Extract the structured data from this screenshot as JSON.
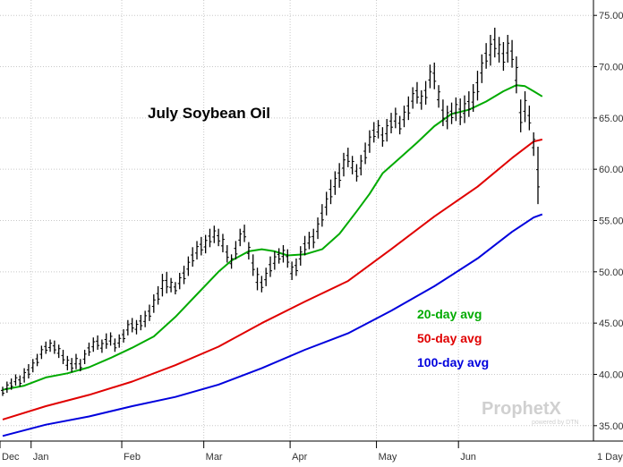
{
  "chart_data": {
    "type": "line",
    "title": "July Soybean Oil",
    "x_labels": [
      "Dec",
      "Jan",
      "Feb",
      "Mar",
      "Apr",
      "May",
      "Jun"
    ],
    "period_label": "1 Day",
    "ylim": [
      33.5,
      76.5
    ],
    "y_ticks": [
      "35.00",
      "40.00",
      "45.00",
      "50.00",
      "55.00",
      "60.00",
      "65.00",
      "70.00",
      "75.00"
    ],
    "grid": true,
    "watermark": "ProphetX",
    "watermark_sub": "powered by DTN",
    "colors": {
      "price": "#000000",
      "ma20": "#00aa00",
      "ma50": "#e00000",
      "ma100": "#0000dd"
    },
    "legend": [
      {
        "label": "20-day avg",
        "color": "#00aa00"
      },
      {
        "label": "50-day avg",
        "color": "#e00000"
      },
      {
        "label": "100-day avg",
        "color": "#0000dd"
      }
    ],
    "price_bars": [
      [
        37.9,
        38.8
      ],
      [
        38.2,
        39.3
      ],
      [
        38.5,
        39.6
      ],
      [
        38.9,
        40.0
      ],
      [
        38.8,
        39.9
      ],
      [
        39.2,
        40.6
      ],
      [
        39.6,
        41.0
      ],
      [
        40.2,
        41.5
      ],
      [
        40.8,
        42.0
      ],
      [
        41.5,
        42.8
      ],
      [
        42.0,
        43.2
      ],
      [
        42.2,
        43.4
      ],
      [
        42.0,
        43.3
      ],
      [
        41.6,
        42.9
      ],
      [
        41.0,
        42.4
      ],
      [
        40.4,
        41.8
      ],
      [
        40.2,
        41.6
      ],
      [
        40.5,
        42.0
      ],
      [
        40.3,
        41.5
      ],
      [
        41.0,
        42.4
      ],
      [
        41.8,
        43.1
      ],
      [
        42.2,
        43.6
      ],
      [
        42.4,
        43.8
      ],
      [
        42.1,
        43.4
      ],
      [
        42.5,
        44.0
      ],
      [
        42.8,
        44.1
      ],
      [
        42.2,
        43.5
      ],
      [
        42.6,
        43.9
      ],
      [
        43.1,
        44.4
      ],
      [
        43.8,
        45.3
      ],
      [
        44.1,
        45.5
      ],
      [
        43.9,
        45.3
      ],
      [
        44.3,
        45.8
      ],
      [
        44.6,
        46.2
      ],
      [
        45.2,
        46.8
      ],
      [
        46.0,
        47.8
      ],
      [
        46.8,
        48.6
      ],
      [
        47.6,
        49.8
      ],
      [
        47.9,
        50.0
      ],
      [
        48.0,
        49.4
      ],
      [
        47.8,
        49.0
      ],
      [
        48.3,
        49.9
      ],
      [
        48.8,
        50.6
      ],
      [
        49.6,
        51.5
      ],
      [
        50.5,
        52.4
      ],
      [
        51.2,
        53.0
      ],
      [
        51.6,
        53.4
      ],
      [
        51.8,
        53.6
      ],
      [
        52.4,
        54.2
      ],
      [
        52.8,
        54.5
      ],
      [
        52.5,
        54.2
      ],
      [
        51.9,
        53.7
      ],
      [
        50.9,
        52.6
      ],
      [
        50.3,
        51.7
      ],
      [
        51.2,
        53.0
      ],
      [
        52.5,
        54.2
      ],
      [
        52.9,
        54.6
      ],
      [
        51.2,
        52.9
      ],
      [
        49.6,
        51.7
      ],
      [
        48.2,
        50.4
      ],
      [
        48.0,
        49.6
      ],
      [
        48.6,
        50.4
      ],
      [
        49.5,
        51.5
      ],
      [
        50.2,
        52.0
      ],
      [
        50.8,
        52.3
      ],
      [
        50.9,
        52.6
      ],
      [
        50.4,
        52.2
      ],
      [
        49.2,
        51.0
      ],
      [
        49.6,
        51.3
      ],
      [
        50.6,
        52.5
      ],
      [
        51.6,
        53.5
      ],
      [
        52.2,
        53.9
      ],
      [
        52.3,
        54.2
      ],
      [
        53.2,
        55.3
      ],
      [
        54.4,
        56.6
      ],
      [
        55.5,
        57.8
      ],
      [
        56.6,
        59.0
      ],
      [
        57.5,
        59.8
      ],
      [
        58.2,
        60.6
      ],
      [
        59.3,
        61.6
      ],
      [
        60.2,
        62.1
      ],
      [
        59.5,
        61.3
      ],
      [
        58.8,
        60.5
      ],
      [
        59.4,
        61.4
      ],
      [
        60.5,
        62.6
      ],
      [
        61.6,
        63.8
      ],
      [
        62.6,
        64.6
      ],
      [
        63.0,
        64.8
      ],
      [
        62.2,
        64.1
      ],
      [
        62.7,
        64.9
      ],
      [
        63.5,
        65.5
      ],
      [
        64.0,
        66.0
      ],
      [
        63.4,
        65.2
      ],
      [
        64.1,
        66.2
      ],
      [
        64.8,
        67.1
      ],
      [
        65.9,
        68.0
      ],
      [
        66.4,
        68.5
      ],
      [
        65.8,
        67.7
      ],
      [
        66.3,
        68.6
      ],
      [
        67.9,
        70.2
      ],
      [
        67.8,
        70.4
      ],
      [
        66.0,
        68.2
      ],
      [
        64.2,
        66.8
      ],
      [
        63.9,
        66.2
      ],
      [
        64.4,
        66.5
      ],
      [
        64.7,
        67.0
      ],
      [
        64.3,
        66.9
      ],
      [
        64.5,
        67.2
      ],
      [
        65.1,
        67.6
      ],
      [
        65.6,
        68.3
      ],
      [
        66.7,
        69.6
      ],
      [
        68.4,
        71.2
      ],
      [
        69.8,
        72.3
      ],
      [
        70.1,
        73.1
      ],
      [
        70.9,
        73.8
      ],
      [
        70.4,
        72.9
      ],
      [
        69.6,
        72.4
      ],
      [
        70.4,
        73.1
      ],
      [
        69.9,
        72.6
      ],
      [
        67.4,
        71.0
      ],
      [
        63.6,
        66.8
      ],
      [
        64.6,
        67.6
      ],
      [
        63.8,
        66.2
      ],
      [
        61.3,
        63.6
      ],
      [
        56.6,
        62.2
      ]
    ],
    "ma20": [
      [
        0,
        38.5
      ],
      [
        5,
        38.9
      ],
      [
        10,
        39.7
      ],
      [
        15,
        40.1
      ],
      [
        20,
        40.7
      ],
      [
        25,
        41.6
      ],
      [
        30,
        42.6
      ],
      [
        35,
        43.7
      ],
      [
        40,
        45.6
      ],
      [
        45,
        47.8
      ],
      [
        50,
        50.0
      ],
      [
        53,
        51.1
      ],
      [
        57,
        52.0
      ],
      [
        60,
        52.2
      ],
      [
        63,
        52.0
      ],
      [
        66,
        51.6
      ],
      [
        70,
        51.7
      ],
      [
        74,
        52.2
      ],
      [
        78,
        53.7
      ],
      [
        82,
        55.9
      ],
      [
        85,
        57.6
      ],
      [
        88,
        59.6
      ],
      [
        92,
        61.1
      ],
      [
        96,
        62.6
      ],
      [
        100,
        64.2
      ],
      [
        104,
        65.4
      ],
      [
        108,
        65.8
      ],
      [
        112,
        66.6
      ],
      [
        116,
        67.6
      ],
      [
        119,
        68.2
      ],
      [
        121,
        68.1
      ],
      [
        123,
        67.6
      ],
      [
        125,
        67.1
      ]
    ],
    "ma50": [
      [
        0,
        35.6
      ],
      [
        10,
        36.9
      ],
      [
        20,
        38.0
      ],
      [
        30,
        39.3
      ],
      [
        40,
        40.9
      ],
      [
        50,
        42.7
      ],
      [
        60,
        45.0
      ],
      [
        70,
        47.1
      ],
      [
        80,
        49.1
      ],
      [
        90,
        52.2
      ],
      [
        100,
        55.4
      ],
      [
        110,
        58.3
      ],
      [
        118,
        61.1
      ],
      [
        123,
        62.7
      ],
      [
        125,
        62.9
      ]
    ],
    "ma100": [
      [
        0,
        34.0
      ],
      [
        10,
        35.1
      ],
      [
        20,
        35.9
      ],
      [
        30,
        36.9
      ],
      [
        40,
        37.8
      ],
      [
        50,
        39.0
      ],
      [
        60,
        40.6
      ],
      [
        70,
        42.4
      ],
      [
        80,
        44.0
      ],
      [
        90,
        46.2
      ],
      [
        100,
        48.6
      ],
      [
        110,
        51.3
      ],
      [
        118,
        53.9
      ],
      [
        123,
        55.3
      ],
      [
        125,
        55.6
      ]
    ]
  }
}
